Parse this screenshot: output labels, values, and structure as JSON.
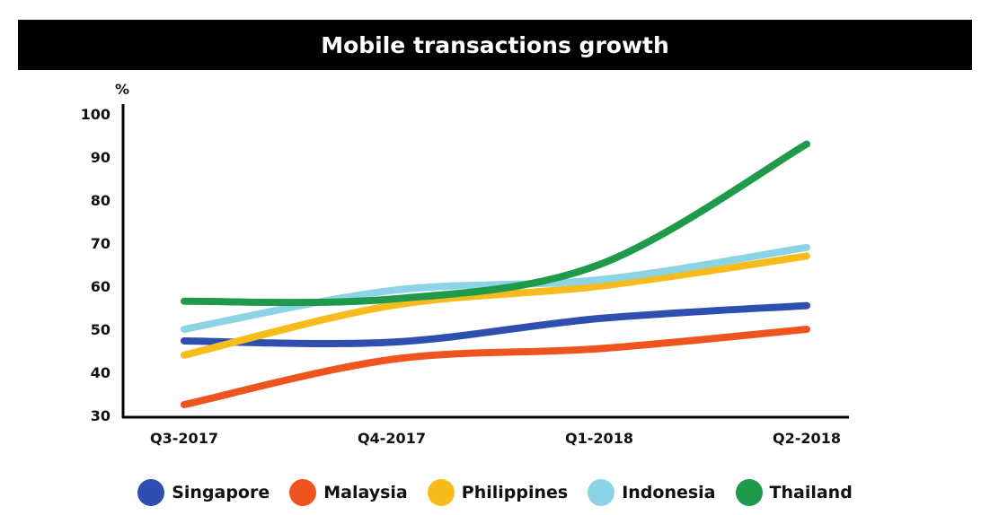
{
  "chart_data": {
    "type": "line",
    "title": "Mobile transactions growth",
    "ylabel": "%",
    "xlabel": "",
    "categories": [
      "Q3-2017",
      "Q4-2017",
      "Q1-2018",
      "Q2-2018"
    ],
    "ylim": [
      30,
      100
    ],
    "yticks": [
      30,
      40,
      50,
      60,
      70,
      80,
      90,
      100
    ],
    "grid": false,
    "legend_position": "bottom",
    "series": [
      {
        "name": "Singapore",
        "color": "#2f4fb0",
        "values": [
          47.3,
          47,
          52.5,
          55.5
        ]
      },
      {
        "name": "Malaysia",
        "color": "#f0541e",
        "values": [
          32.5,
          43,
          45.5,
          50
        ]
      },
      {
        "name": "Philippines",
        "color": "#f8bb1c",
        "values": [
          44,
          55.5,
          60,
          67
        ]
      },
      {
        "name": "Indonesia",
        "color": "#8dd3e6",
        "values": [
          50,
          59,
          61.5,
          69
        ]
      },
      {
        "name": "Thailand",
        "color": "#1f9a4b",
        "values": [
          56.5,
          57,
          65,
          93
        ]
      }
    ]
  }
}
